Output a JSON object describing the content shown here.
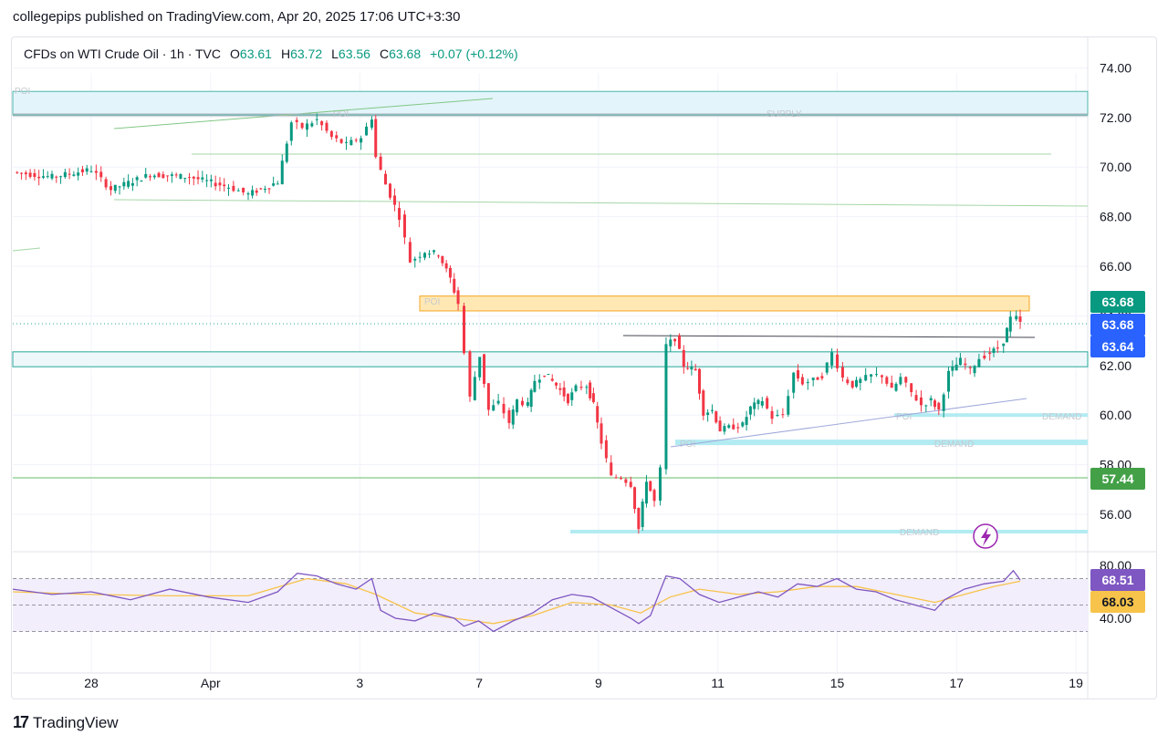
{
  "header": {
    "publisher": "collegepips published on TradingView.com, Apr 20, 2025 17:06 UTC+3:30"
  },
  "legend": {
    "symbol": "CFDs on WTI Crude Oil · 1h · TVC",
    "open_label": "O",
    "open": "63.61",
    "high_label": "H",
    "high": "63.72",
    "low_label": "L",
    "low": "63.56",
    "close_label": "C",
    "close": "63.68",
    "change": "+0.07 (+0.12%)"
  },
  "footer": {
    "brand": "TradingView",
    "logo_glyph": "17"
  },
  "colors": {
    "up": "#089981",
    "down": "#f23645",
    "rsi": "#7e57c2",
    "rsi_ma": "#f7c34a",
    "zone_supply": "#e3f4fb",
    "zone_resistance": "#ffe8b3",
    "demand": "#b2ebf2"
  },
  "chart_data": [
    {
      "type": "line",
      "subtype": "candlestick",
      "x_ticks": [
        "28",
        "Apr",
        "3",
        "7",
        "9",
        "11",
        "15",
        "17",
        "19"
      ],
      "y_ticks": [
        "74.00",
        "72.00",
        "70.00",
        "68.00",
        "66.00",
        "64.00",
        "62.00",
        "60.00",
        "58.00",
        "56.00"
      ],
      "ylim": [
        54.5,
        75.0
      ],
      "price_badges": [
        {
          "value": "63.68",
          "color": "#089981"
        },
        {
          "value": "63.68",
          "color": "#2962ff"
        },
        {
          "value": "63.64",
          "color": "#2962ff"
        },
        {
          "value": "57.44",
          "color": "#43a047"
        }
      ],
      "zone_labels": [
        "POI",
        "POI",
        "SUPPLY",
        "POI",
        "DEMAND",
        "POI",
        "DEMAND",
        "POI",
        "DEMAND"
      ],
      "series": [
        {
          "name": "",
          "points": [
            [
              0,
              69.8
            ],
            [
              4,
              69.6
            ],
            [
              8,
              69.9
            ],
            [
              10,
              69.1
            ],
            [
              14,
              69.7
            ],
            [
              18,
              69.6
            ],
            [
              22,
              69.2
            ],
            [
              24,
              68.9
            ],
            [
              27,
              69.4
            ],
            [
              28.4,
              71.8
            ],
            [
              29.5,
              71.6
            ],
            [
              31,
              71.9
            ],
            [
              32.5,
              71.2
            ],
            [
              34,
              70.9
            ],
            [
              35.5,
              71.2
            ],
            [
              36.6,
              72.0
            ],
            [
              37,
              70.4
            ],
            [
              38,
              69.3
            ],
            [
              39.4,
              68.0
            ],
            [
              40.5,
              66.2
            ],
            [
              42,
              66.6
            ],
            [
              43.4,
              66.5
            ],
            [
              44.6,
              65.5
            ],
            [
              45.4,
              64.5
            ],
            [
              46,
              62.5
            ],
            [
              46.6,
              60.7
            ],
            [
              47.6,
              62.4
            ],
            [
              48.5,
              60.2
            ],
            [
              49.5,
              60.5
            ],
            [
              50.6,
              59.7
            ],
            [
              51.4,
              60.6
            ],
            [
              52.5,
              60.4
            ],
            [
              53.2,
              61.4
            ],
            [
              54.2,
              61.7
            ],
            [
              55.4,
              61.2
            ],
            [
              56.6,
              60.6
            ],
            [
              57.4,
              61.1
            ],
            [
              58.5,
              61.2
            ],
            [
              59.2,
              60.4
            ],
            [
              60,
              58.9
            ],
            [
              61,
              57.5
            ],
            [
              62,
              57.5
            ],
            [
              63,
              57.2
            ],
            [
              63.8,
              55.4
            ],
            [
              64.6,
              57.4
            ],
            [
              65.4,
              56.5
            ],
            [
              66,
              57.8
            ],
            [
              66.6,
              62.8
            ],
            [
              67.5,
              63.1
            ],
            [
              68.4,
              62.0
            ],
            [
              69.6,
              61.8
            ],
            [
              70.4,
              60.1
            ],
            [
              71.3,
              60.2
            ],
            [
              72.1,
              59.4
            ],
            [
              73,
              59.5
            ],
            [
              74.4,
              59.6
            ],
            [
              75.2,
              60.3
            ],
            [
              76.4,
              60.6
            ],
            [
              77.4,
              59.9
            ],
            [
              78.5,
              60.0
            ],
            [
              79.6,
              61.7
            ],
            [
              80.5,
              61.3
            ],
            [
              81.6,
              61.4
            ],
            [
              82.5,
              61.6
            ],
            [
              83.5,
              62.5
            ],
            [
              84.6,
              61.5
            ],
            [
              85.6,
              61.2
            ],
            [
              86.4,
              61.4
            ],
            [
              87.5,
              61.6
            ],
            [
              88.6,
              61.6
            ],
            [
              89.6,
              61.0
            ],
            [
              90.5,
              61.5
            ],
            [
              91.6,
              60.9
            ],
            [
              92.6,
              60.4
            ],
            [
              93.6,
              60.6
            ],
            [
              94.4,
              60.2
            ],
            [
              95.4,
              61.7
            ],
            [
              96.6,
              62.2
            ],
            [
              97.6,
              61.8
            ],
            [
              98.5,
              62.3
            ],
            [
              99.6,
              62.5
            ],
            [
              100.4,
              62.7
            ],
            [
              101,
              63.0
            ],
            [
              101.7,
              63.9
            ],
            [
              102.3,
              63.9
            ],
            [
              102.7,
              63.7
            ]
          ]
        }
      ]
    },
    {
      "type": "line",
      "subtype": "rsi",
      "y_ticks": [
        "80.00",
        "40.00"
      ],
      "ylim": [
        29,
        83
      ],
      "rsi_badge": "68.51",
      "rsi_ma_badge": "68.03",
      "series": [
        {
          "name": "",
          "points": [
            [
              0,
              62
            ],
            [
              4,
              58
            ],
            [
              8,
              60
            ],
            [
              12,
              54
            ],
            [
              16,
              62
            ],
            [
              20,
              56
            ],
            [
              24,
              52
            ],
            [
              27,
              60
            ],
            [
              29,
              74
            ],
            [
              31,
              72
            ],
            [
              33,
              66
            ],
            [
              35,
              62
            ],
            [
              36.6,
              70
            ],
            [
              37.5,
              46
            ],
            [
              39,
              40
            ],
            [
              41,
              38
            ],
            [
              43,
              44
            ],
            [
              45,
              40
            ],
            [
              46,
              34
            ],
            [
              47.5,
              38
            ],
            [
              49,
              30
            ],
            [
              51,
              38
            ],
            [
              53,
              44
            ],
            [
              55,
              54
            ],
            [
              57,
              58
            ],
            [
              59,
              56
            ],
            [
              61,
              48
            ],
            [
              63,
              40
            ],
            [
              63.8,
              36
            ],
            [
              65,
              42
            ],
            [
              66.6,
              72
            ],
            [
              68,
              70
            ],
            [
              70,
              58
            ],
            [
              72,
              52
            ],
            [
              74,
              56
            ],
            [
              76,
              60
            ],
            [
              78,
              56
            ],
            [
              80,
              66
            ],
            [
              82,
              64
            ],
            [
              84,
              70
            ],
            [
              86,
              62
            ],
            [
              88,
              60
            ],
            [
              90,
              54
            ],
            [
              92,
              50
            ],
            [
              94,
              46
            ],
            [
              95,
              54
            ],
            [
              97,
              62
            ],
            [
              99,
              66
            ],
            [
              101,
              68
            ],
            [
              102,
              76
            ],
            [
              102.7,
              69
            ]
          ]
        },
        {
          "name": "",
          "points": [
            [
              0,
              60
            ],
            [
              8,
              58
            ],
            [
              16,
              57
            ],
            [
              24,
              57
            ],
            [
              30,
              70
            ],
            [
              34,
              66
            ],
            [
              37,
              58
            ],
            [
              41,
              44
            ],
            [
              45,
              40
            ],
            [
              49,
              36
            ],
            [
              53,
              42
            ],
            [
              57,
              52
            ],
            [
              61,
              50
            ],
            [
              64,
              44
            ],
            [
              67,
              56
            ],
            [
              70,
              62
            ],
            [
              74,
              58
            ],
            [
              78,
              60
            ],
            [
              82,
              64
            ],
            [
              86,
              64
            ],
            [
              90,
              58
            ],
            [
              94,
              52
            ],
            [
              97,
              58
            ],
            [
              100,
              64
            ],
            [
              102.7,
              68
            ]
          ]
        }
      ]
    }
  ]
}
